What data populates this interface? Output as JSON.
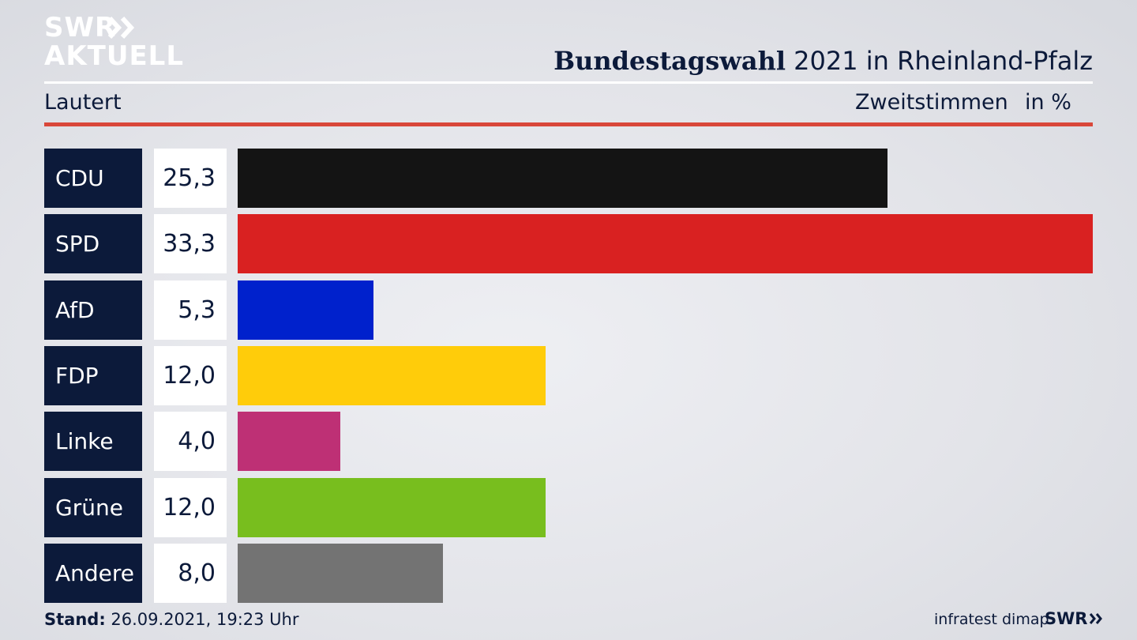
{
  "header": {
    "logo_line1": "SWR",
    "logo_line2": "AKTUELL",
    "title_bold": "Bundestagswahl",
    "title_rest": " 2021 in Rheinland-Pfalz",
    "region": "Lautert",
    "vote_type": "Zweitstimmen",
    "unit": "in %"
  },
  "chart_data": {
    "type": "bar",
    "orientation": "horizontal",
    "categories": [
      "CDU",
      "SPD",
      "AfD",
      "FDP",
      "Linke",
      "Grüne",
      "Andere"
    ],
    "values": [
      25.3,
      33.3,
      5.3,
      12.0,
      4.0,
      12.0,
      8.0
    ],
    "value_labels": [
      "25,3",
      "33,3",
      "5,3",
      "12,0",
      "4,0",
      "12,0",
      "8,0"
    ],
    "colors": [
      "#141414",
      "#d92121",
      "#0021cc",
      "#ffcc0a",
      "#be3075",
      "#78be1e",
      "#737373"
    ],
    "xlim": [
      0,
      33.3
    ]
  },
  "footer": {
    "stand_label": "Stand:",
    "stand_value": " 26.09.2021, 19:23 Uhr",
    "source": "infratest dimap",
    "brand": "SWR"
  }
}
